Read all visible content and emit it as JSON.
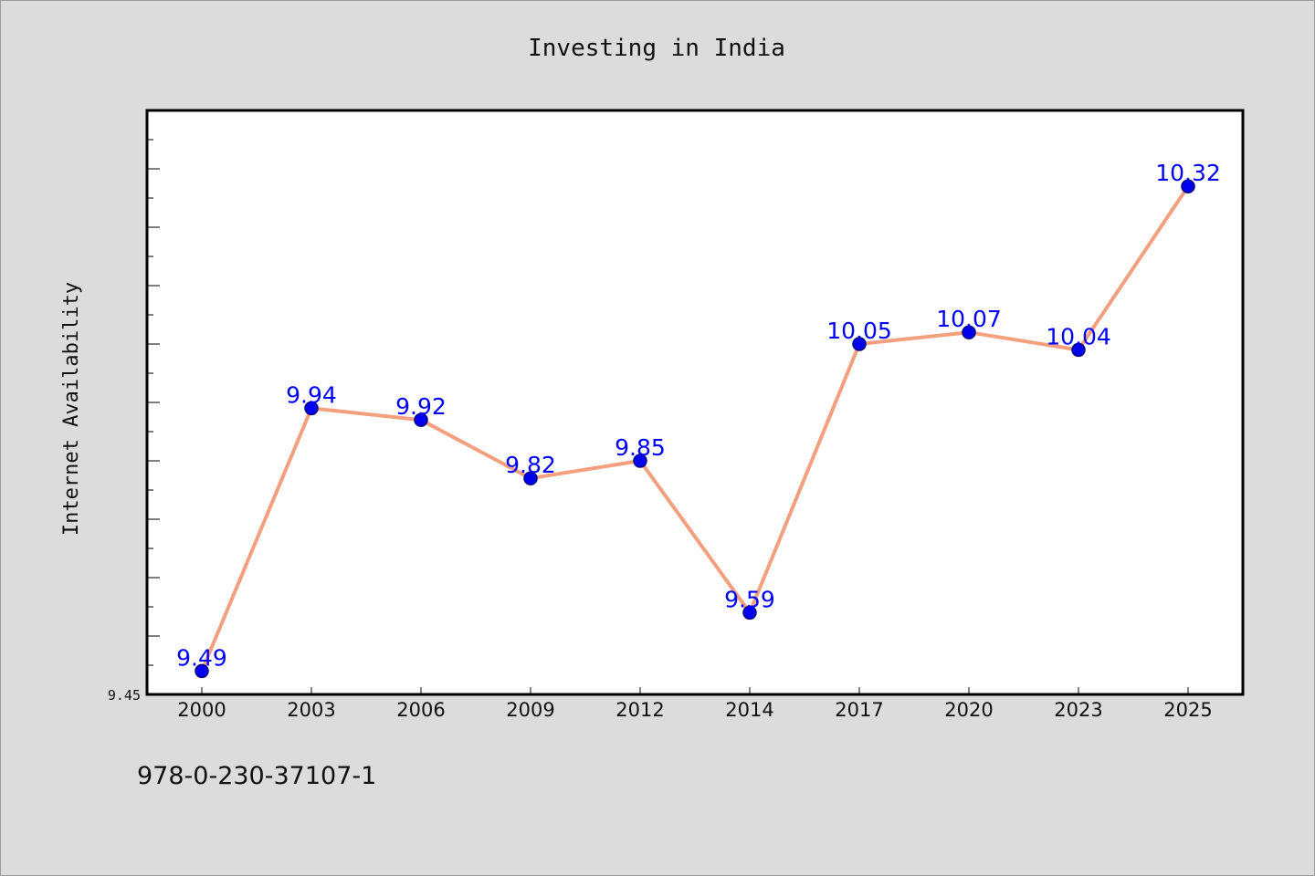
{
  "chart_data": {
    "type": "line",
    "title": "Investing in India",
    "xlabel": "",
    "ylabel": "Internet Availability",
    "categories": [
      "2000",
      "2003",
      "2006",
      "2009",
      "2012",
      "2014",
      "2017",
      "2020",
      "2023",
      "2025"
    ],
    "series": [
      {
        "values": [
          9.49,
          9.94,
          9.92,
          9.82,
          9.85,
          9.59,
          10.05,
          10.07,
          10.04,
          10.32
        ]
      }
    ],
    "data_labels": [
      "9.49",
      "9.94",
      "9.92",
      "9.82",
      "9.85",
      "9.59",
      "10.05",
      "10.07",
      "10.04",
      "10.32"
    ],
    "y_tick_labels": [
      "9.45"
    ],
    "ylim": [
      9.45,
      10.45
    ],
    "grid": false,
    "colors": {
      "line": "#f4a07e",
      "marker": "#0000ee",
      "marker_edge": "#000080",
      "data_label": "#0000ff",
      "background": "#dcdcdc",
      "plot_background": "#ffffff"
    }
  },
  "footer": {
    "isbn": "978-0-230-37107-1"
  }
}
